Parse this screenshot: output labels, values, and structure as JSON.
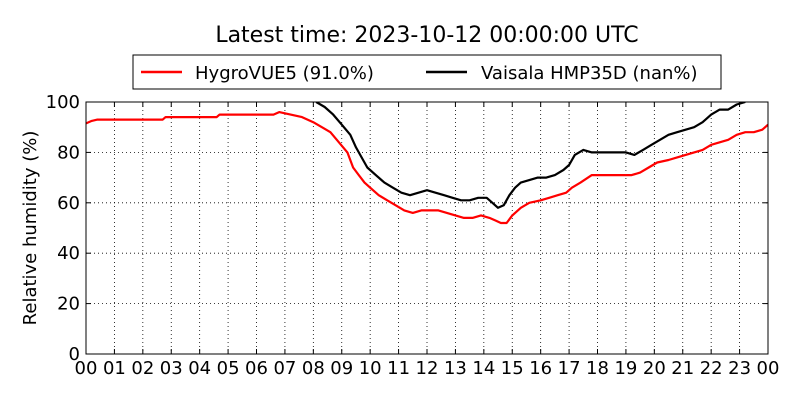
{
  "chart_data": {
    "type": "line",
    "title": "Latest time: 2023-10-12 00:00:00 UTC",
    "xlabel": "",
    "ylabel": "Relative humidity (%)",
    "xlim": [
      0,
      24
    ],
    "ylim": [
      0,
      100
    ],
    "x_ticks": [
      0,
      1,
      2,
      3,
      4,
      5,
      6,
      7,
      8,
      9,
      10,
      11,
      12,
      13,
      14,
      15,
      16,
      17,
      18,
      19,
      20,
      21,
      22,
      23,
      24
    ],
    "x_tick_labels": [
      "00",
      "01",
      "02",
      "03",
      "04",
      "05",
      "06",
      "07",
      "08",
      "09",
      "10",
      "11",
      "12",
      "13",
      "14",
      "15",
      "16",
      "17",
      "18",
      "19",
      "20",
      "21",
      "22",
      "23",
      "00"
    ],
    "y_ticks": [
      0,
      20,
      40,
      60,
      80,
      100
    ],
    "y_tick_labels": [
      "0",
      "20",
      "40",
      "60",
      "80",
      "100"
    ],
    "grid": true,
    "legend_position": "top-center-above-plot",
    "series": [
      {
        "name": "HygroVUE5 (91.0%)",
        "color": "#ff0000",
        "x": [
          0,
          0.2,
          0.4,
          2.7,
          2.8,
          4.6,
          4.7,
          6.6,
          6.8,
          7.2,
          7.6,
          8.0,
          8.3,
          8.6,
          8.9,
          9.2,
          9.4,
          9.6,
          9.8,
          10.0,
          10.3,
          10.6,
          10.9,
          11.2,
          11.5,
          11.8,
          12.1,
          12.4,
          12.7,
          13.0,
          13.3,
          13.6,
          13.9,
          14.2,
          14.4,
          14.6,
          14.8,
          15.0,
          15.3,
          15.6,
          16.0,
          16.3,
          16.6,
          16.9,
          17.1,
          17.4,
          17.8,
          18.2,
          18.6,
          18.9,
          19.2,
          19.5,
          19.8,
          20.1,
          20.5,
          20.8,
          21.1,
          21.4,
          21.7,
          22.0,
          22.3,
          22.6,
          22.9,
          23.2,
          23.5,
          23.8,
          24.0
        ],
        "values": [
          91.5,
          92.5,
          93,
          93,
          94,
          94,
          95,
          95,
          96,
          95,
          94,
          92,
          90,
          88,
          84,
          80,
          74,
          71,
          68,
          66,
          63,
          61,
          59,
          57,
          56,
          57,
          57,
          57,
          56,
          55,
          54,
          54,
          55,
          54,
          53,
          52,
          52,
          55,
          58,
          60,
          61,
          62,
          63,
          64,
          66,
          68,
          71,
          71,
          71,
          71,
          71,
          72,
          74,
          76,
          77,
          78,
          79,
          80,
          81,
          83,
          84,
          85,
          87,
          88,
          88,
          89,
          91
        ]
      },
      {
        "name": "Vaisala HMP35D (nan%)",
        "color": "#000000",
        "x": [
          8.1,
          8.4,
          8.7,
          9.0,
          9.3,
          9.5,
          9.7,
          9.9,
          10.2,
          10.5,
          10.8,
          11.1,
          11.4,
          11.7,
          12.0,
          12.3,
          12.6,
          12.9,
          13.2,
          13.5,
          13.8,
          14.1,
          14.3,
          14.5,
          14.7,
          14.9,
          15.1,
          15.3,
          15.6,
          15.9,
          16.2,
          16.5,
          16.8,
          17.0,
          17.2,
          17.5,
          17.8,
          18.1,
          18.4,
          18.7,
          19.0,
          19.3,
          19.6,
          19.9,
          20.2,
          20.5,
          20.8,
          21.1,
          21.4,
          21.7,
          22.0,
          22.3,
          22.6,
          22.9,
          23.2
        ],
        "values": [
          100,
          98,
          95,
          91,
          87,
          82,
          78,
          74,
          71,
          68,
          66,
          64,
          63,
          64,
          65,
          64,
          63,
          62,
          61,
          61,
          62,
          62,
          60,
          58,
          59,
          63,
          66,
          68,
          69,
          70,
          70,
          71,
          73,
          75,
          79,
          81,
          80,
          80,
          80,
          80,
          80,
          79,
          81,
          83,
          85,
          87,
          88,
          89,
          90,
          92,
          95,
          97,
          97,
          99,
          100
        ]
      }
    ]
  }
}
